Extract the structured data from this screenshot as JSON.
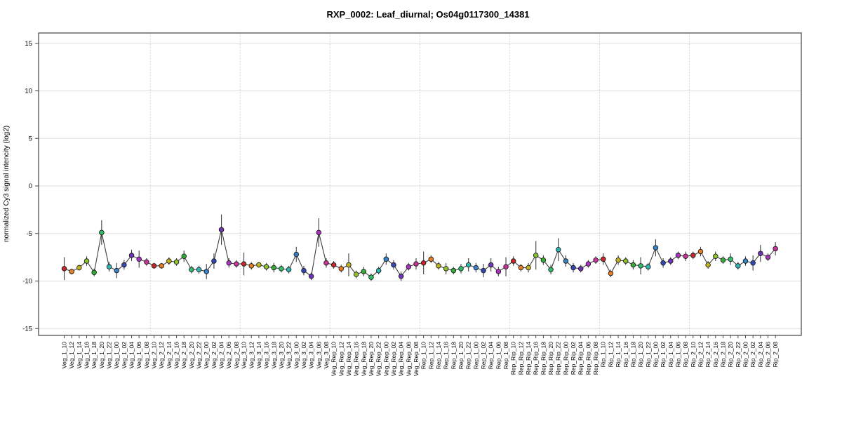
{
  "figure": {
    "title": "RXP_0002: Leaf_diurnal; Os04g0117300_14381",
    "y_axis_label": "normalized Cy3 signal intencity (log2)"
  },
  "chart_data": {
    "type": "line",
    "title": "RXP_0002: Leaf_diurnal; Os04g0117300_14381",
    "xlabel": "",
    "ylabel": "normalized Cy3 signal intencity (log2)",
    "ylim": [
      -16,
      16
    ],
    "y_ticks": [
      15,
      10,
      5,
      0,
      -5,
      -10,
      -15
    ],
    "grid": true,
    "legend": false,
    "group_size": 12,
    "groups": [
      "Veg_1",
      "Veg_2",
      "Veg_3",
      "Veg_Rep",
      "Rep_1",
      "Rep_Rip",
      "Rip_1",
      "Rip_2"
    ],
    "line_color": "#3f3f3f",
    "point_color_cycle": [
      "#C62728",
      "#E87D22",
      "#C4B51F",
      "#8CC32F",
      "#35AC35",
      "#2FC06A",
      "#2FB6B6",
      "#3583C5",
      "#3448B4",
      "#7133B8",
      "#A833BE",
      "#C93399"
    ],
    "categories": [
      "Veg_1_10",
      "Veg_1_12",
      "Veg_1_14",
      "Veg_1_16",
      "Veg_1_18",
      "Veg_1_20",
      "Veg_1_22",
      "Veg_1_00",
      "Veg_1_02",
      "Veg_1_04",
      "Veg_1_06",
      "Veg_1_08",
      "Veg_2_10",
      "Veg_2_12",
      "Veg_2_14",
      "Veg_2_16",
      "Veg_2_18",
      "Veg_2_20",
      "Veg_2_22",
      "Veg_2_00",
      "Veg_2_02",
      "Veg_2_04",
      "Veg_2_06",
      "Veg_2_08",
      "Veg_3_10",
      "Veg_3_12",
      "Veg_3_14",
      "Veg_3_16",
      "Veg_3_18",
      "Veg_3_20",
      "Veg_3_22",
      "Veg_3_00",
      "Veg_3_02",
      "Veg_3_04",
      "Veg_3_06",
      "Veg_3_08",
      "Veg_Rep_10",
      "Veg_Rep_12",
      "Veg_Rep_14",
      "Veg_Rep_16",
      "Veg_Rep_18",
      "Veg_Rep_20",
      "Veg_Rep_22",
      "Veg_Rep_00",
      "Veg_Rep_02",
      "Veg_Rep_04",
      "Veg_Rep_06",
      "Veg_Rep_08",
      "Rep_1_10",
      "Rep_1_12",
      "Rep_1_14",
      "Rep_1_16",
      "Rep_1_18",
      "Rep_1_20",
      "Rep_1_22",
      "Rep_1_00",
      "Rep_1_02",
      "Rep_1_04",
      "Rep_1_06",
      "Rep_1_08",
      "Rep_Rip_10",
      "Rep_Rip_12",
      "Rep_Rip_14",
      "Rep_Rip_16",
      "Rep_Rip_18",
      "Rep_Rip_20",
      "Rep_Rip_22",
      "Rep_Rip_00",
      "Rep_Rip_02",
      "Rep_Rip_04",
      "Rep_Rip_06",
      "Rep_Rip_08",
      "Rip_1_10",
      "Rip_1_12",
      "Rip_1_14",
      "Rip_1_16",
      "Rip_1_18",
      "Rip_1_20",
      "Rip_1_22",
      "Rip_1_00",
      "Rip_1_02",
      "Rip_1_04",
      "Rip_1_06",
      "Rip_1_08",
      "Rip_2_10",
      "Rip_2_12",
      "Rip_2_14",
      "Rip_2_16",
      "Rip_2_18",
      "Rip_2_20",
      "Rip_2_22",
      "Rip_2_00",
      "Rip_2_02",
      "Rip_2_04",
      "Rip_2_06",
      "Rip_2_08"
    ],
    "values": [
      -8.7,
      -9.0,
      -8.6,
      -7.9,
      -9.1,
      -4.9,
      -8.5,
      -8.9,
      -8.3,
      -7.3,
      -7.7,
      -8.0,
      -8.4,
      -8.4,
      -7.9,
      -8.0,
      -7.4,
      -8.8,
      -8.8,
      -9.0,
      -7.9,
      -4.6,
      -8.1,
      -8.2,
      -8.2,
      -8.4,
      -8.3,
      -8.5,
      -8.6,
      -8.7,
      -8.8,
      -7.2,
      -8.9,
      -9.5,
      -4.9,
      -8.1,
      -8.3,
      -8.7,
      -8.3,
      -9.3,
      -9.0,
      -9.6,
      -8.9,
      -7.7,
      -8.3,
      -9.5,
      -8.5,
      -8.2,
      -8.1,
      -7.7,
      -8.4,
      -8.7,
      -8.9,
      -8.7,
      -8.3,
      -8.6,
      -8.9,
      -8.3,
      -9.0,
      -8.5,
      -7.9,
      -8.6,
      -8.6,
      -7.3,
      -7.8,
      -8.8,
      -6.7,
      -7.9,
      -8.6,
      -8.7,
      -8.2,
      -7.8,
      -7.7,
      -9.2,
      -7.8,
      -7.9,
      -8.3,
      -8.4,
      -8.5,
      -6.5,
      -8.1,
      -7.9,
      -7.3,
      -7.4,
      -7.3,
      -6.9,
      -8.3,
      -7.4,
      -7.8,
      -7.7,
      -8.4,
      -7.9,
      -8.1,
      -7.1,
      -7.5,
      -6.6
    ],
    "errors": [
      1.2,
      0.3,
      0.3,
      0.5,
      0.4,
      1.3,
      0.5,
      0.8,
      0.5,
      0.6,
      0.9,
      0.4,
      0.3,
      0.3,
      0.4,
      0.4,
      0.6,
      0.4,
      0.4,
      0.8,
      0.8,
      1.6,
      0.5,
      0.4,
      1.2,
      0.4,
      0.3,
      0.4,
      0.5,
      0.4,
      0.4,
      0.8,
      0.5,
      0.4,
      1.5,
      0.5,
      0.4,
      0.4,
      1.2,
      0.4,
      0.5,
      0.4,
      0.4,
      0.6,
      0.5,
      0.5,
      0.4,
      0.6,
      1.2,
      0.4,
      0.4,
      0.6,
      0.4,
      0.5,
      0.7,
      0.5,
      0.7,
      0.7,
      0.5,
      1.0,
      0.5,
      0.4,
      0.5,
      1.5,
      0.5,
      0.5,
      1.2,
      0.6,
      0.5,
      0.4,
      0.4,
      0.4,
      0.6,
      0.4,
      0.5,
      0.4,
      0.5,
      0.9,
      0.4,
      0.9,
      0.5,
      0.4,
      0.4,
      0.5,
      0.4,
      0.5,
      0.4,
      0.5,
      0.4,
      0.6,
      0.4,
      0.5,
      0.8,
      0.9,
      0.4,
      0.7
    ]
  }
}
